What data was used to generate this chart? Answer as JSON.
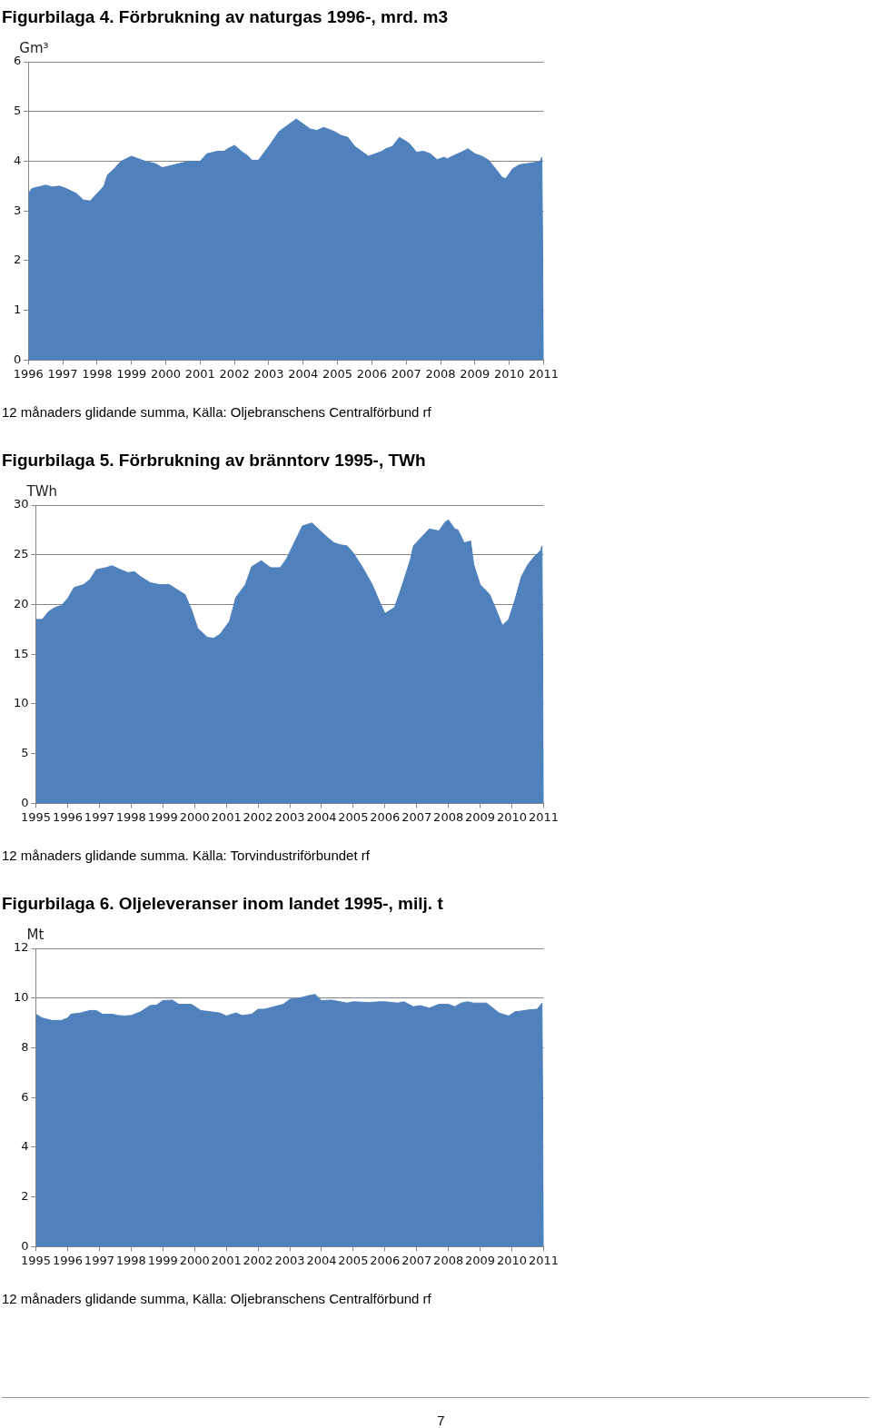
{
  "chart_data": [
    {
      "type": "area",
      "title": "Figurbilaga 4. Förbrukning av naturgas 1996-, mrd. m3",
      "ylabel": "Gm³",
      "annotations": [
        "12 månaders glidande summa, Källa: Oljebranschens Centralförbund rf"
      ],
      "grid": "y",
      "legend": false,
      "xlim": [
        1996,
        2011
      ],
      "xticks": [
        1996,
        1997,
        1998,
        1999,
        2000,
        2001,
        2002,
        2003,
        2004,
        2005,
        2006,
        2007,
        2008,
        2009,
        2010,
        2011
      ],
      "ylim": [
        0,
        6
      ],
      "yticks": [
        0,
        1,
        2,
        3,
        4,
        5,
        6
      ],
      "series": [
        {
          "color": "#4f81bd",
          "x": [
            1996.0,
            1996.1,
            1996.4,
            1996.5,
            1996.7,
            1996.9,
            1997.1,
            1997.4,
            1997.6,
            1997.8,
            1998.0,
            1998.2,
            1998.3,
            1998.5,
            1998.7,
            1999.0,
            1999.2,
            1999.4,
            1999.7,
            1999.9,
            2000.2,
            2000.5,
            2000.7,
            2001.0,
            2001.2,
            2001.5,
            2001.7,
            2001.8,
            2002.0,
            2002.2,
            2002.4,
            2002.5,
            2002.7,
            2003.0,
            2003.3,
            2003.5,
            2003.7,
            2003.8,
            2004.0,
            2004.2,
            2004.4,
            2004.6,
            2004.9,
            2005.1,
            2005.3,
            2005.5,
            2005.7,
            2005.9,
            2006.1,
            2006.3,
            2006.4,
            2006.6,
            2006.8,
            2007.0,
            2007.1,
            2007.3,
            2007.5,
            2007.7,
            2007.9,
            2008.1,
            2008.2,
            2008.4,
            2008.6,
            2008.8,
            2009.0,
            2009.2,
            2009.4,
            2009.6,
            2009.8,
            2009.9,
            2010.1,
            2010.3,
            2010.5,
            2010.7,
            2010.9,
            2010.95,
            2011.0
          ],
          "values": [
            3.35,
            3.45,
            3.5,
            3.52,
            3.48,
            3.5,
            3.45,
            3.35,
            3.22,
            3.2,
            3.35,
            3.5,
            3.72,
            3.85,
            4.0,
            4.1,
            4.05,
            4.0,
            3.95,
            3.87,
            3.92,
            3.97,
            4.0,
            4.0,
            4.15,
            4.2,
            4.2,
            4.25,
            4.32,
            4.2,
            4.1,
            4.02,
            4.02,
            4.3,
            4.6,
            4.7,
            4.8,
            4.85,
            4.75,
            4.65,
            4.62,
            4.68,
            4.6,
            4.52,
            4.48,
            4.3,
            4.2,
            4.1,
            4.15,
            4.2,
            4.25,
            4.3,
            4.48,
            4.4,
            4.35,
            4.18,
            4.2,
            4.15,
            4.03,
            4.08,
            4.05,
            4.12,
            4.18,
            4.25,
            4.15,
            4.1,
            4.02,
            3.85,
            3.67,
            3.65,
            3.85,
            3.93,
            3.95,
            3.97,
            4.0,
            4.08,
            0
          ]
        }
      ]
    },
    {
      "type": "area",
      "title": "Figurbilaga 5. Förbrukning av bränntorv 1995-, TWh",
      "ylabel": "TWh",
      "annotations": [
        "12 månaders glidande summa. Källa: Torvindustriförbundet rf"
      ],
      "grid": "y",
      "legend": false,
      "xlim": [
        1995,
        2011
      ],
      "xticks": [
        1995,
        1996,
        1997,
        1998,
        1999,
        2000,
        2001,
        2002,
        2003,
        2004,
        2005,
        2006,
        2007,
        2008,
        2009,
        2010,
        2011
      ],
      "ylim": [
        0,
        30
      ],
      "yticks": [
        0,
        5,
        10,
        15,
        20,
        25,
        30
      ],
      "series": [
        {
          "color": "#4f81bd",
          "x": [
            1995.0,
            1995.2,
            1995.4,
            1995.6,
            1995.8,
            1996.0,
            1996.2,
            1996.5,
            1996.7,
            1996.9,
            1997.2,
            1997.4,
            1997.6,
            1997.9,
            1998.1,
            1998.3,
            1998.6,
            1998.9,
            1999.2,
            1999.4,
            1999.7,
            1999.9,
            2000.1,
            2000.4,
            2000.6,
            2000.8,
            2001.1,
            2001.3,
            2001.6,
            2001.8,
            2002.0,
            2002.1,
            2002.4,
            2002.7,
            2002.9,
            2003.2,
            2003.4,
            2003.7,
            2003.9,
            2004.2,
            2004.4,
            2004.6,
            2004.8,
            2005.0,
            2005.3,
            2005.6,
            2005.8,
            2006.0,
            2006.3,
            2006.5,
            2006.8,
            2006.9,
            2007.1,
            2007.4,
            2007.7,
            2007.9,
            2008.0,
            2008.2,
            2008.3,
            2008.5,
            2008.7,
            2008.8,
            2009.0,
            2009.3,
            2009.5,
            2009.7,
            2009.9,
            2010.1,
            2010.3,
            2010.5,
            2010.7,
            2010.9,
            2010.95,
            2011.0
          ],
          "values": [
            18.5,
            18.5,
            19.3,
            19.7,
            19.9,
            20.6,
            21.7,
            22.0,
            22.5,
            23.5,
            23.7,
            23.9,
            23.6,
            23.2,
            23.3,
            22.8,
            22.2,
            22.0,
            22.0,
            21.6,
            21.0,
            19.5,
            17.6,
            16.7,
            16.6,
            17.0,
            18.3,
            20.7,
            22.0,
            23.8,
            24.2,
            24.4,
            23.7,
            23.7,
            24.6,
            26.6,
            27.9,
            28.2,
            27.6,
            26.7,
            26.2,
            26.0,
            25.9,
            25.2,
            23.7,
            22.0,
            20.5,
            19.1,
            19.7,
            21.5,
            24.5,
            25.9,
            26.6,
            27.6,
            27.4,
            28.3,
            28.5,
            27.6,
            27.5,
            26.2,
            26.4,
            24.0,
            22.0,
            21.0,
            19.5,
            17.9,
            18.5,
            20.5,
            22.8,
            24.0,
            24.8,
            25.4,
            25.9,
            0
          ]
        }
      ]
    },
    {
      "type": "area",
      "title": "Figurbilaga 6. Oljeleveranser inom landet 1995-, milj. t",
      "ylabel": "Mt",
      "annotations": [
        "12 månaders glidande summa, Källa: Oljebranschens Centralförbund rf",
        "7"
      ],
      "grid": "y",
      "legend": false,
      "xlim": [
        1995,
        2011
      ],
      "xticks": [
        1995,
        1996,
        1997,
        1998,
        1999,
        2000,
        2001,
        2002,
        2003,
        2004,
        2005,
        2006,
        2007,
        2008,
        2009,
        2010,
        2011
      ],
      "ylim": [
        0,
        12
      ],
      "yticks": [
        0,
        2,
        4,
        6,
        8,
        10,
        12
      ],
      "series": [
        {
          "color": "#4f81bd",
          "x": [
            1995.0,
            1995.2,
            1995.5,
            1995.8,
            1996.0,
            1996.1,
            1996.4,
            1996.7,
            1996.9,
            1997.1,
            1997.4,
            1997.6,
            1997.8,
            1998.0,
            1998.3,
            1998.6,
            1998.8,
            1999.0,
            1999.3,
            1999.5,
            1999.9,
            2000.2,
            2000.5,
            2000.8,
            2001.0,
            2001.3,
            2001.5,
            2001.8,
            2002.0,
            2002.2,
            2002.5,
            2002.8,
            2003.0,
            2003.3,
            2003.6,
            2003.8,
            2004.0,
            2004.3,
            2004.6,
            2004.8,
            2005.0,
            2005.5,
            2005.8,
            2006.0,
            2006.4,
            2006.6,
            2006.9,
            2007.1,
            2007.4,
            2007.7,
            2008.0,
            2008.2,
            2008.4,
            2008.6,
            2008.8,
            2009.0,
            2009.2,
            2009.4,
            2009.6,
            2009.9,
            2010.1,
            2010.3,
            2010.5,
            2010.8,
            2010.95,
            2011.0
          ],
          "values": [
            9.35,
            9.2,
            9.1,
            9.1,
            9.2,
            9.35,
            9.4,
            9.5,
            9.5,
            9.35,
            9.35,
            9.3,
            9.28,
            9.3,
            9.45,
            9.7,
            9.72,
            9.9,
            9.92,
            9.75,
            9.75,
            9.5,
            9.45,
            9.4,
            9.28,
            9.4,
            9.3,
            9.35,
            9.55,
            9.55,
            9.65,
            9.75,
            9.95,
            10.0,
            10.1,
            10.15,
            9.9,
            9.92,
            9.85,
            9.8,
            9.85,
            9.82,
            9.85,
            9.85,
            9.8,
            9.85,
            9.65,
            9.7,
            9.6,
            9.75,
            9.75,
            9.65,
            9.8,
            9.85,
            9.8,
            9.8,
            9.8,
            9.6,
            9.4,
            9.28,
            9.45,
            9.48,
            9.52,
            9.55,
            9.8,
            0
          ]
        }
      ]
    }
  ]
}
